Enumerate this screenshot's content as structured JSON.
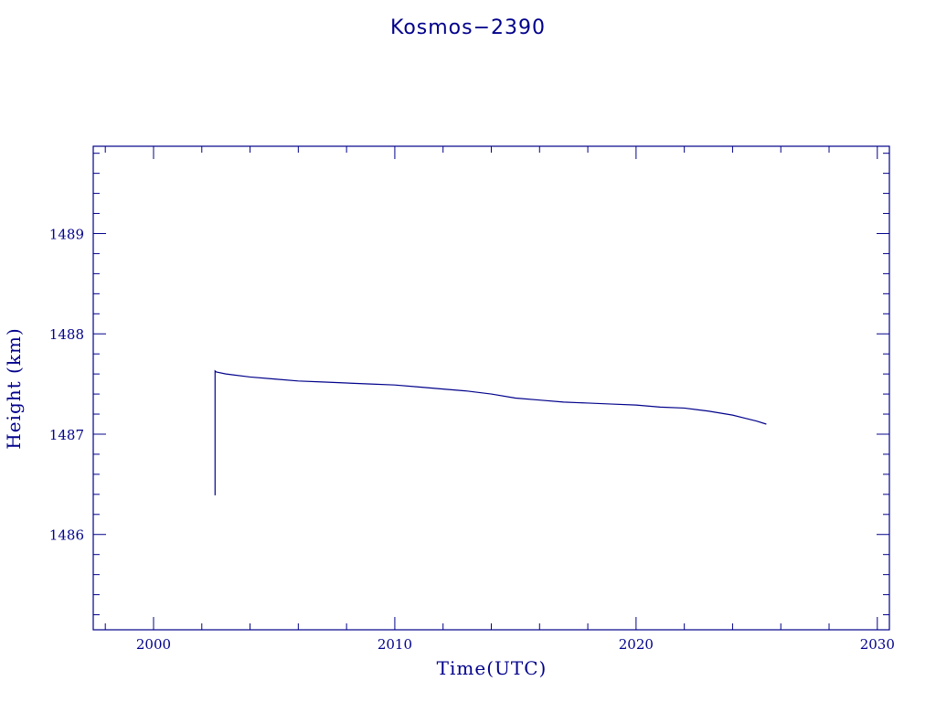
{
  "chart_data": {
    "type": "line",
    "title": "Kosmos−2390",
    "xlabel": "Time(UTC)",
    "ylabel": "Height (km)",
    "xlim": [
      1997.5,
      2030.5
    ],
    "ylim": [
      1485.05,
      1489.87
    ],
    "x_ticks": [
      2000,
      2010,
      2020,
      2030
    ],
    "x_tick_labels": [
      "2000",
      "2010",
      "2020",
      "2030"
    ],
    "y_ticks": [
      1486,
      1487,
      1488,
      1489
    ],
    "y_tick_labels": [
      "1486",
      "1487",
      "1488",
      "1489"
    ],
    "x_minor_step": 2,
    "y_minor_step": 0.2,
    "grid": false,
    "color": "#00008b",
    "series": [
      {
        "x": [
          2002.55,
          2002.55,
          2002.6,
          2003.0,
          2004.0,
          2005.0,
          2006.0,
          2007.0,
          2008.0,
          2009.0,
          2010.0,
          2011.0,
          2012.0,
          2013.0,
          2014.0,
          2015.0,
          2016.0,
          2017.0,
          2018.0,
          2019.0,
          2020.0,
          2021.0,
          2022.0,
          2023.0,
          2024.0,
          2024.5,
          2025.0,
          2025.4
        ],
        "y": [
          1486.39,
          1487.63,
          1487.62,
          1487.6,
          1487.57,
          1487.55,
          1487.53,
          1487.52,
          1487.51,
          1487.5,
          1487.49,
          1487.47,
          1487.45,
          1487.43,
          1487.4,
          1487.36,
          1487.34,
          1487.32,
          1487.31,
          1487.3,
          1487.29,
          1487.27,
          1487.26,
          1487.23,
          1487.19,
          1487.16,
          1487.13,
          1487.1
        ]
      }
    ]
  }
}
